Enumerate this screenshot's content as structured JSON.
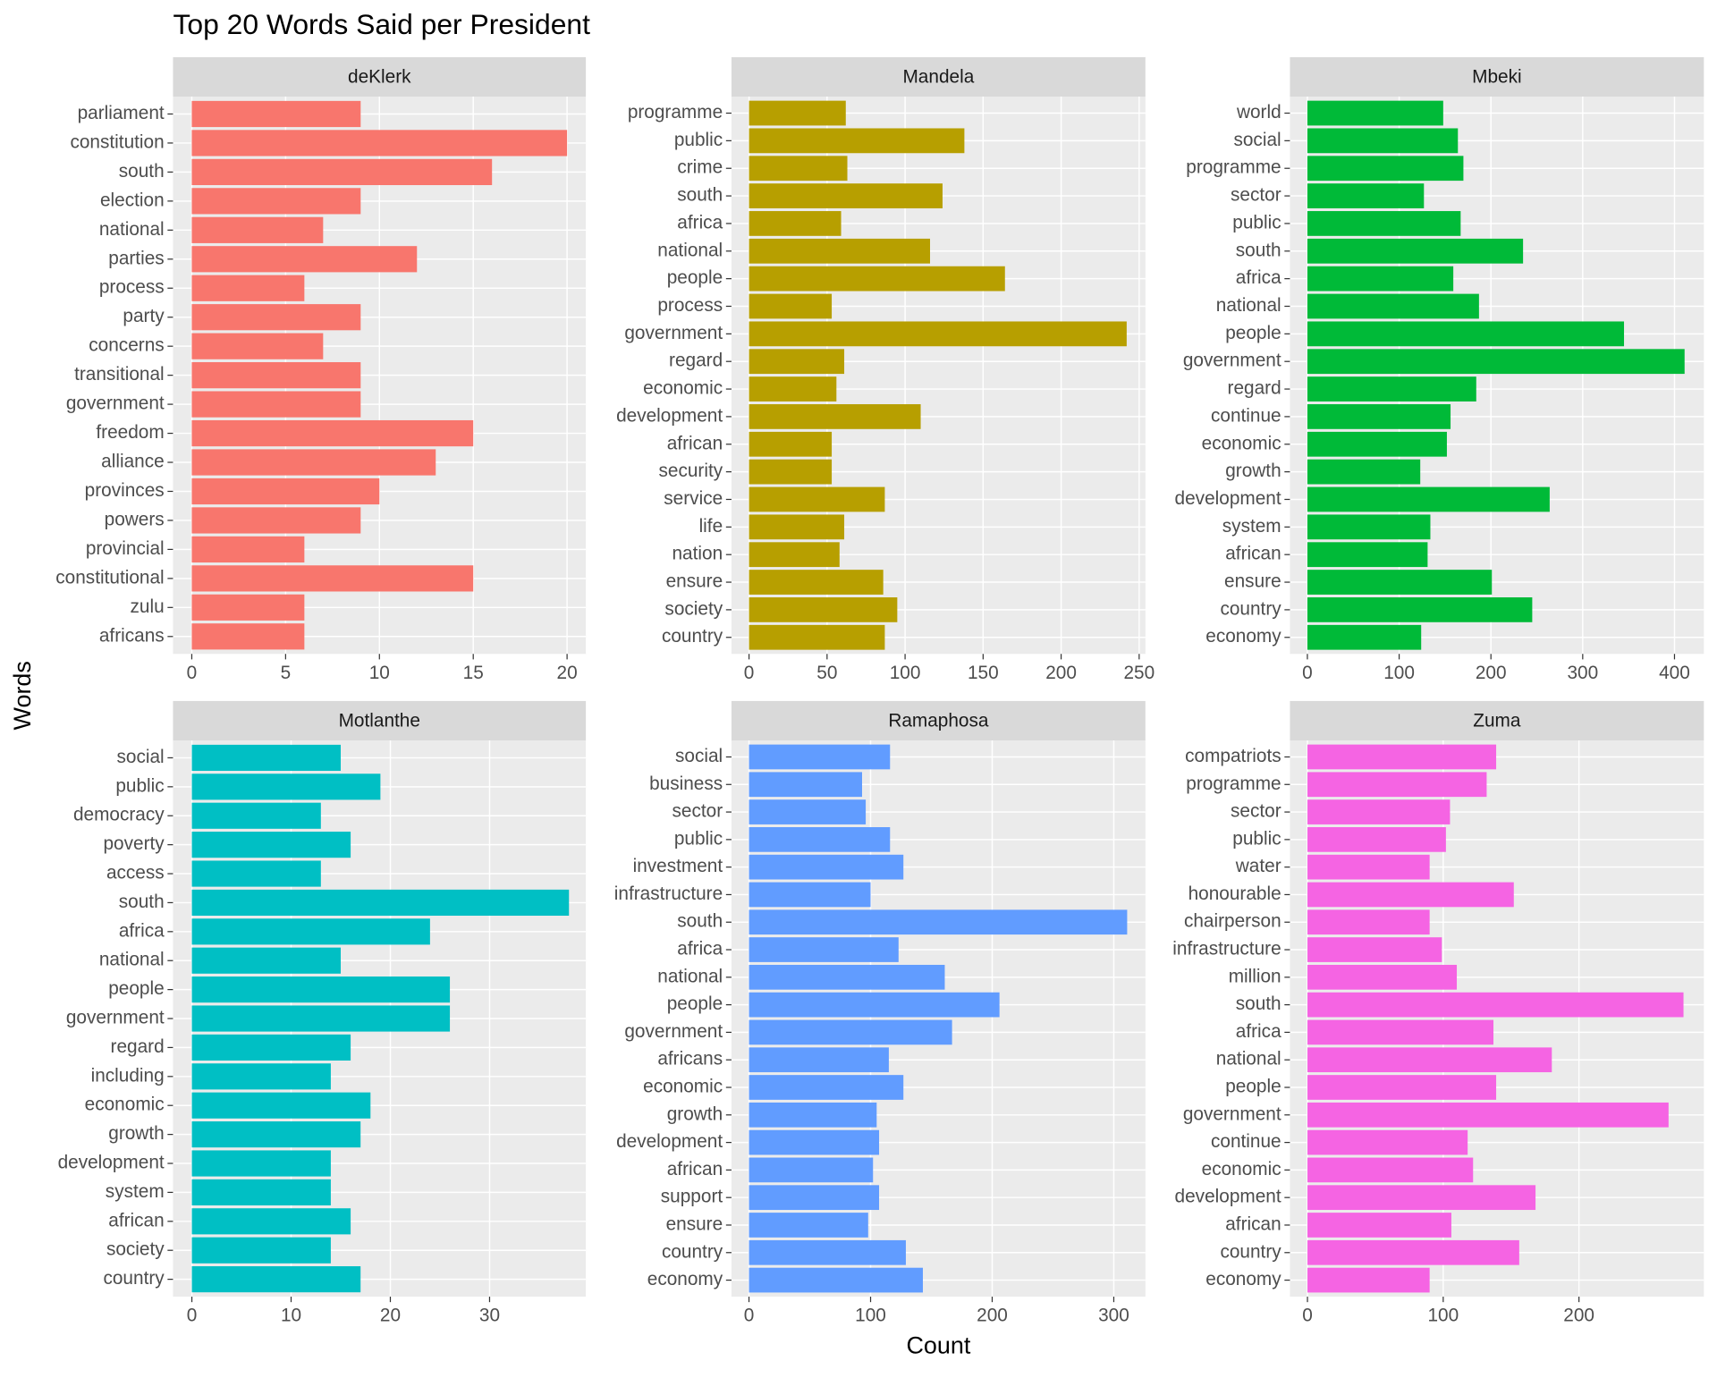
{
  "title": "Top 20 Words Said per President",
  "x_label": "Count",
  "y_label": "Words",
  "chart_data": [
    {
      "type": "bar",
      "orientation": "horizontal",
      "title": "deKlerk",
      "color": "#F8766D",
      "categories": [
        "parliament",
        "constitution",
        "south",
        "election",
        "national",
        "parties",
        "process",
        "party",
        "concerns",
        "transitional",
        "government",
        "freedom",
        "alliance",
        "provinces",
        "powers",
        "provincial",
        "constitutional",
        "zulu",
        "africans"
      ],
      "values": [
        9,
        20,
        16,
        9,
        7,
        12,
        6,
        9,
        7,
        9,
        9,
        15,
        13,
        10,
        9,
        6,
        15,
        6,
        6
      ],
      "xlim": [
        -1,
        21
      ],
      "xticks": [
        0,
        5,
        10,
        15,
        20
      ],
      "grid": true
    },
    {
      "type": "bar",
      "orientation": "horizontal",
      "title": "Mandela",
      "color": "#B79F00",
      "categories": [
        "programme",
        "public",
        "crime",
        "south",
        "africa",
        "national",
        "people",
        "process",
        "government",
        "regard",
        "economic",
        "development",
        "african",
        "security",
        "service",
        "life",
        "nation",
        "ensure",
        "society",
        "country"
      ],
      "values": [
        62,
        138,
        63,
        124,
        59,
        116,
        164,
        53,
        242,
        61,
        56,
        110,
        53,
        53,
        87,
        61,
        58,
        86,
        95,
        87
      ],
      "xlim": [
        -11.25,
        254
      ],
      "xticks": [
        0,
        50,
        100,
        150,
        200,
        250
      ],
      "grid": true
    },
    {
      "type": "bar",
      "orientation": "horizontal",
      "title": "Mbeki",
      "color": "#00BA38",
      "categories": [
        "world",
        "social",
        "programme",
        "sector",
        "public",
        "south",
        "africa",
        "national",
        "people",
        "government",
        "regard",
        "continue",
        "economic",
        "growth",
        "development",
        "system",
        "african",
        "ensure",
        "country",
        "economy"
      ],
      "values": [
        148,
        164,
        170,
        127,
        167,
        235,
        159,
        187,
        345,
        411,
        184,
        156,
        152,
        123,
        264,
        134,
        131,
        201,
        245,
        124
      ],
      "xlim": [
        -19,
        432
      ],
      "xticks": [
        0,
        100,
        200,
        300,
        400
      ],
      "grid": true
    },
    {
      "type": "bar",
      "orientation": "horizontal",
      "title": "Motlanthe",
      "color": "#00BFC4",
      "categories": [
        "social",
        "public",
        "democracy",
        "poverty",
        "access",
        "south",
        "africa",
        "national",
        "people",
        "government",
        "regard",
        "including",
        "economic",
        "growth",
        "development",
        "system",
        "african",
        "society",
        "country"
      ],
      "values": [
        15,
        19,
        13,
        16,
        13,
        38,
        24,
        15,
        26,
        26,
        16,
        14,
        18,
        17,
        14,
        14,
        16,
        14,
        17
      ],
      "xlim": [
        -1.9,
        39.7
      ],
      "xticks": [
        0,
        10,
        20,
        30
      ],
      "grid": true
    },
    {
      "type": "bar",
      "orientation": "horizontal",
      "title": "Ramaphosa",
      "color": "#619CFF",
      "categories": [
        "social",
        "business",
        "sector",
        "public",
        "investment",
        "infrastructure",
        "south",
        "africa",
        "national",
        "people",
        "government",
        "africans",
        "economic",
        "growth",
        "development",
        "african",
        "support",
        "ensure",
        "country",
        "economy"
      ],
      "values": [
        116,
        93,
        96,
        116,
        127,
        100,
        311,
        123,
        161,
        206,
        167,
        115,
        127,
        105,
        107,
        102,
        107,
        98,
        129,
        143
      ],
      "xlim": [
        -14.4,
        326
      ],
      "xticks": [
        0,
        100,
        200,
        300
      ],
      "grid": true
    },
    {
      "type": "bar",
      "orientation": "horizontal",
      "title": "Zuma",
      "color": "#F564E3",
      "categories": [
        "compatriots",
        "programme",
        "sector",
        "public",
        "water",
        "honourable",
        "chairperson",
        "infrastructure",
        "million",
        "south",
        "africa",
        "national",
        "people",
        "government",
        "continue",
        "economic",
        "development",
        "african",
        "country",
        "economy"
      ],
      "values": [
        139,
        132,
        105,
        102,
        90,
        152,
        90,
        99,
        110,
        277,
        137,
        180,
        139,
        266,
        118,
        122,
        168,
        106,
        156,
        90
      ],
      "xlim": [
        -12.9,
        292
      ],
      "xticks": [
        0,
        100,
        200
      ],
      "grid": true
    }
  ]
}
